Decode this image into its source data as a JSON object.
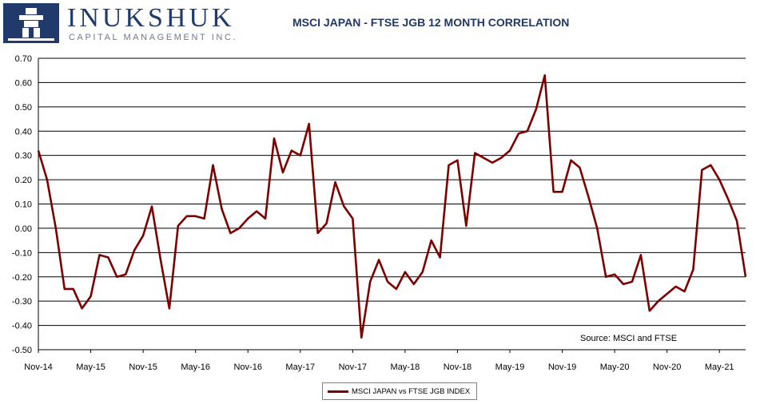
{
  "logo": {
    "name": "INUKSHUK",
    "tagline": "CAPITAL MANAGEMENT INC."
  },
  "chart_data": {
    "type": "line",
    "title": "MSCI JAPAN - FTSE JGB 12 MONTH CORRELATION",
    "x_tick_labels": [
      "Nov-14",
      "May-15",
      "Nov-15",
      "May-16",
      "Nov-16",
      "May-17",
      "Nov-17",
      "May-18",
      "Nov-18",
      "May-19",
      "Nov-19",
      "May-20",
      "Nov-20",
      "May-21"
    ],
    "y_tick_labels": [
      "0.70",
      "0.60",
      "0.50",
      "0.40",
      "0.30",
      "0.20",
      "0.10",
      "0.00",
      "-0.10",
      "-0.20",
      "-0.30",
      "-0.40",
      "-0.50"
    ],
    "ylim": [
      -0.5,
      0.7
    ],
    "grid": "horizontal",
    "legend_position": "bottom",
    "annotation": "Source: MSCI and FTSE",
    "series": [
      {
        "name": "MSCI JAPAN vs FTSE JGB INDEX",
        "color": "#7b0000",
        "values": [
          0.32,
          0.2,
          0.0,
          -0.25,
          -0.25,
          -0.33,
          -0.28,
          -0.11,
          -0.12,
          -0.2,
          -0.19,
          -0.09,
          -0.03,
          0.09,
          -0.13,
          -0.33,
          0.01,
          0.05,
          0.05,
          0.04,
          0.26,
          0.08,
          -0.02,
          0.0,
          0.04,
          0.07,
          0.04,
          0.37,
          0.23,
          0.32,
          0.3,
          0.43,
          -0.02,
          0.02,
          0.19,
          0.09,
          0.04,
          -0.45,
          -0.22,
          -0.13,
          -0.22,
          -0.25,
          -0.18,
          -0.23,
          -0.18,
          -0.05,
          -0.12,
          0.26,
          0.28,
          0.01,
          0.31,
          0.29,
          0.27,
          0.29,
          0.32,
          0.39,
          0.4,
          0.49,
          0.63,
          0.15,
          0.15,
          0.28,
          0.25,
          0.13,
          0.0,
          -0.2,
          -0.19,
          -0.23,
          -0.22,
          -0.11,
          -0.34,
          -0.3,
          -0.27,
          -0.24,
          -0.26,
          -0.17,
          0.24,
          0.26,
          0.2,
          0.12,
          0.03,
          -0.2
        ]
      }
    ]
  }
}
